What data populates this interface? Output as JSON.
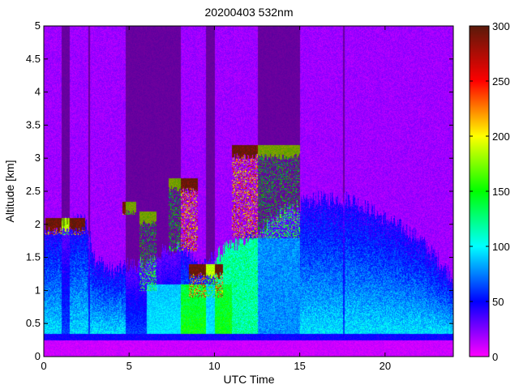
{
  "chart_data": {
    "type": "heatmap",
    "title": "20200403 532nm",
    "xlabel": "UTC Time",
    "ylabel": "Altitude [km]",
    "xlim": [
      0,
      24
    ],
    "ylim": [
      0,
      5
    ],
    "x_ticks": [
      "0",
      "5",
      "10",
      "15",
      "20"
    ],
    "x_tick_values": [
      0,
      5,
      10,
      15,
      20
    ],
    "y_ticks": [
      "0",
      "0.5",
      "1",
      "1.5",
      "2",
      "2.5",
      "3",
      "3.5",
      "4",
      "4.5",
      "5"
    ],
    "y_tick_values": [
      0,
      0.5,
      1,
      1.5,
      2,
      2.5,
      3,
      3.5,
      4,
      4.5,
      5
    ],
    "colorbar": {
      "range": [
        0,
        300
      ],
      "ticks": [
        "0",
        "50",
        "100",
        "150",
        "200",
        "250",
        "300"
      ],
      "tick_values": [
        0,
        50,
        100,
        150,
        200,
        250,
        300
      ],
      "colormap": [
        "#ff00ff",
        "#0000ff",
        "#00ffff",
        "#00ff00",
        "#ffff00",
        "#ff0000",
        "#5a1a0a"
      ]
    },
    "features": {
      "background_color": "#e020f0",
      "surface_band_km": [
        0.25,
        0.35
      ],
      "aerosol_layer_top_km": [
        [
          0,
          1.9
        ],
        [
          1.0,
          2.0
        ],
        [
          2.4,
          2.1
        ],
        [
          3.0,
          1.5
        ],
        [
          4.0,
          1.3
        ],
        [
          5.0,
          1.4
        ],
        [
          6.0,
          1.4
        ],
        [
          7.0,
          1.6
        ],
        [
          8.0,
          1.7
        ],
        [
          9.0,
          1.4
        ],
        [
          10.0,
          1.5
        ],
        [
          11.0,
          1.7
        ],
        [
          12.0,
          1.8
        ],
        [
          13.0,
          2.0
        ],
        [
          14.0,
          2.2
        ],
        [
          15.0,
          2.3
        ],
        [
          16.0,
          2.4
        ],
        [
          18.0,
          2.4
        ],
        [
          20.0,
          2.1
        ],
        [
          22.0,
          1.8
        ],
        [
          24.0,
          1.2
        ]
      ],
      "cloud_segments": [
        {
          "x_range": [
            0.05,
            2.4
          ],
          "top_km": 2.1,
          "bottom_km": 1.85
        },
        {
          "x_range": [
            4.6,
            5.4
          ],
          "top_km": 2.35,
          "bottom_km": 2.15
        },
        {
          "x_range": [
            5.6,
            6.6
          ],
          "top_km": 2.2,
          "bottom_km": 1.0
        },
        {
          "x_range": [
            7.3,
            9.0
          ],
          "top_km": 2.7,
          "bottom_km": 1.6
        },
        {
          "x_range": [
            8.5,
            10.5
          ],
          "top_km": 1.4,
          "bottom_km": 0.9
        },
        {
          "x_range": [
            11.0,
            15.0
          ],
          "top_km": 3.2,
          "bottom_km": 1.8
        }
      ],
      "dark_vertical_bands_h": [
        [
          1.0,
          1.5
        ],
        [
          2.6,
          2.7
        ],
        [
          4.8,
          5.0
        ],
        [
          5.0,
          8.0
        ],
        [
          9.5,
          10.0
        ],
        [
          12.5,
          15.0
        ],
        [
          17.5,
          17.6
        ]
      ]
    }
  }
}
